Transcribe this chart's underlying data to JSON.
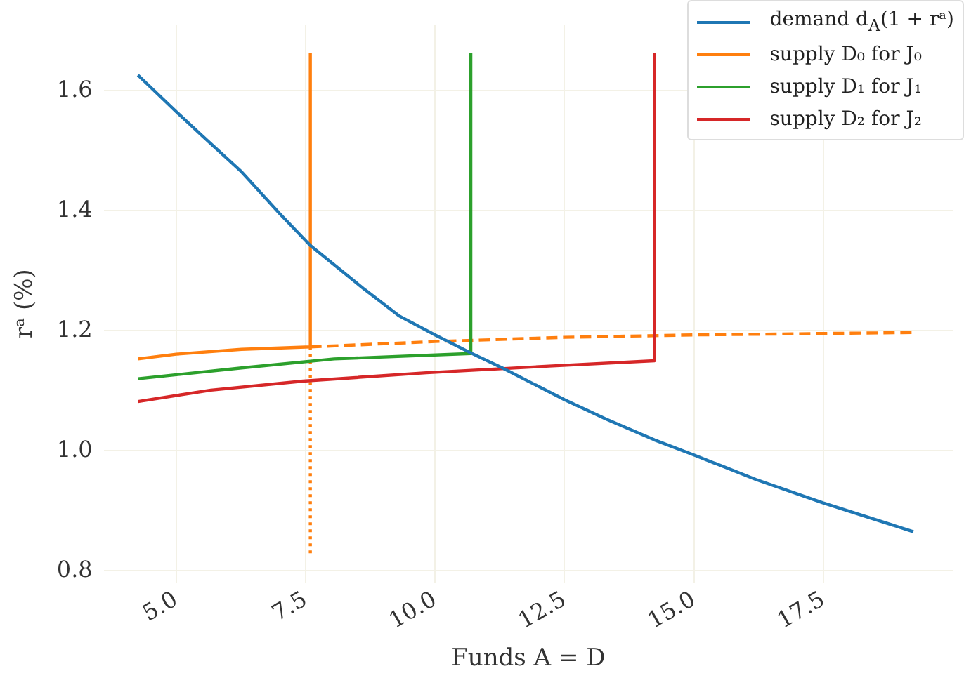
{
  "chart_data": {
    "type": "line",
    "xlabel": "Funds A = D",
    "ylabel": "rᵃ (%)",
    "xlim": [
      3.6,
      20
    ],
    "ylim": [
      0.78,
      1.71
    ],
    "xticks": [
      {
        "value": 5,
        "label": "5.0"
      },
      {
        "value": 7.5,
        "label": "7.5"
      },
      {
        "value": 10,
        "label": "10.0"
      },
      {
        "value": 12.5,
        "label": "12.5"
      },
      {
        "value": 15,
        "label": "15.0"
      },
      {
        "value": 17.5,
        "label": "17.5"
      }
    ],
    "yticks": [
      {
        "value": 0.8,
        "label": "0.8"
      },
      {
        "value": 1,
        "label": "1.0"
      },
      {
        "value": 1.2,
        "label": "1.2"
      },
      {
        "value": 1.4,
        "label": "1.4"
      },
      {
        "value": 1.6,
        "label": "1.6"
      }
    ],
    "grid": true,
    "legend": "top right",
    "marker": "none",
    "series": [
      {
        "name": "demand d$_{A}$(1 + rᵃ)",
        "color": "#1f77b4",
        "line_style": "solid",
        "x": [
          4.26,
          5,
          5.5,
          6.26,
          7,
          7.59,
          8.65,
          9.3,
          10,
          10.69,
          11.3,
          12.5,
          13.3,
          14.24,
          15,
          16.2,
          17.5,
          19.24
        ],
        "values": [
          1.626,
          1.565,
          1.525,
          1.465,
          1.395,
          1.342,
          1.268,
          1.225,
          1.193,
          1.163,
          1.138,
          1.085,
          1.053,
          1.018,
          0.993,
          0.952,
          0.913,
          0.865
        ]
      },
      {
        "name": "supply D₀ for J₀",
        "color": "#ff7f0e",
        "line_style": "solid",
        "x": [
          4.26,
          5,
          6.26,
          7.59,
          7.59
        ],
        "values": [
          1.153,
          1.161,
          1.169,
          1.173,
          1.663
        ]
      },
      {
        "name": "supply D₁ for J₁",
        "color": "#2ca02c",
        "line_style": "solid",
        "x": [
          4.26,
          6.26,
          8.05,
          10.69,
          10.69
        ],
        "values": [
          1.12,
          1.138,
          1.153,
          1.162,
          1.663
        ]
      },
      {
        "name": "supply D₂ for J₂",
        "color": "#d62728",
        "line_style": "solid",
        "x": [
          4.26,
          5.67,
          7.45,
          9.83,
          12.2,
          14.24,
          14.24
        ],
        "values": [
          1.082,
          1.101,
          1.116,
          1.13,
          1.141,
          1.15,
          1.663
        ]
      },
      {
        "color": "#ff7f0e",
        "line_style": "dashed",
        "x": [
          7.59,
          10,
          12.5,
          15,
          19.24
        ],
        "values": [
          1.173,
          1.182,
          1.189,
          1.193,
          1.197
        ]
      },
      {
        "color": "#ff7f0e",
        "line_style": "dotted",
        "x": [
          7.59,
          7.59
        ],
        "values": [
          1.173,
          0.828
        ]
      }
    ]
  }
}
